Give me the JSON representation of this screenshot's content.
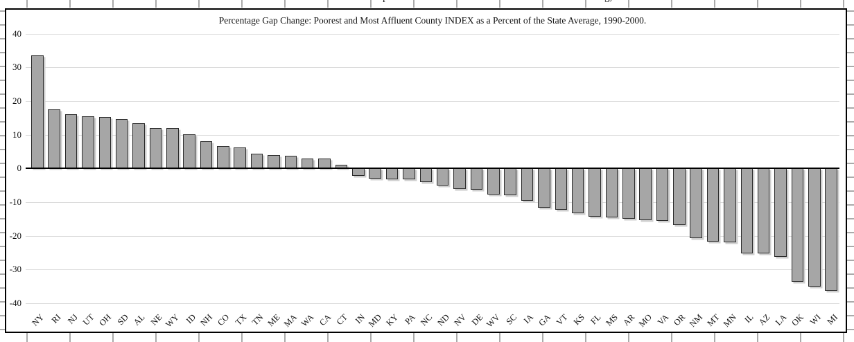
{
  "chart_data": {
    "type": "bar",
    "title": "Percentage Gap Change: Poorest and Most Affluent County INDEX as a Percent of the State Average, 1990-2000.",
    "xlabel": "",
    "ylabel": "",
    "categories": [
      "NY",
      "RI",
      "NJ",
      "UT",
      "OH",
      "SD",
      "AL",
      "NE",
      "WY",
      "ID",
      "NH",
      "CO",
      "TX",
      "TN",
      "ME",
      "MA",
      "WA",
      "CA",
      "CT",
      "IN",
      "MD",
      "KY",
      "PA",
      "NC",
      "ND",
      "NV",
      "DE",
      "WV",
      "SC",
      "IA",
      "GA",
      "VT",
      "KS",
      "FL",
      "MS",
      "AR",
      "MO",
      "VA",
      "OR",
      "NM",
      "MT",
      "MN",
      "IL",
      "AZ",
      "LA",
      "OK",
      "WI",
      "MI"
    ],
    "values": [
      33.5,
      17.5,
      16,
      15.5,
      15.2,
      14.7,
      13.4,
      12,
      11.9,
      10.2,
      8,
      6.7,
      6.2,
      4.3,
      4,
      3.7,
      3,
      3,
      1.1,
      -2.2,
      -3,
      -3.2,
      -3.3,
      -4.1,
      -5.1,
      -6.1,
      -6.3,
      -7.8,
      -8,
      -9.7,
      -11.6,
      -12.2,
      -13.3,
      -14.4,
      -14.5,
      -15,
      -15.3,
      -15.6,
      -16.7,
      -20.7,
      -21.8,
      -22,
      -25.2,
      -25.2,
      -26.2,
      -33.6,
      -35,
      -36.4
    ],
    "ylim": [
      -40,
      40
    ],
    "ytick_interval": 10,
    "ytick_labels": [
      "40",
      "30",
      "20",
      "10",
      "0",
      "-10",
      "-20",
      "-30",
      "-40"
    ],
    "grid": "horizontal-major",
    "legend": "none",
    "bar_fill_color": "#a6a6a6",
    "bar_border_color": "#2b2b2b",
    "gridline_color": "#dcdcdc",
    "axis_color": "#000000"
  },
  "page": {
    "top_cropped_text_descenders": [
      "p",
      "g,"
    ]
  }
}
